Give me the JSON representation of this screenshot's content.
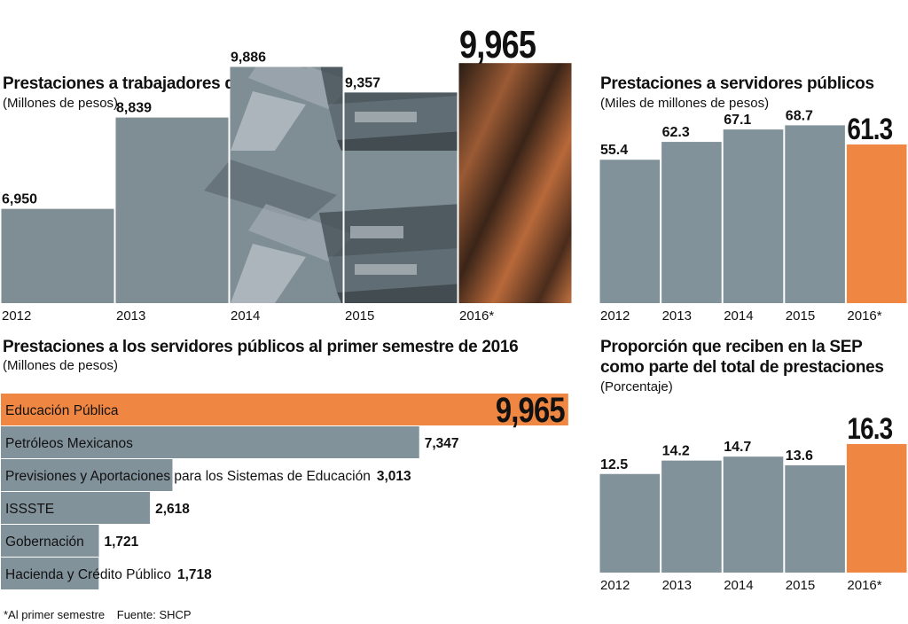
{
  "colors": {
    "gray": "#82929b",
    "orange": "#ef8642",
    "text": "#111111",
    "photo_dark": "#3a3a3a"
  },
  "chart_data": [
    {
      "type": "bar",
      "title": "Prestaciones a trabajadores de la SEP",
      "subtitle": "(Millones de pesos)",
      "categories": [
        "2012",
        "2013",
        "2014",
        "2015",
        "2016*"
      ],
      "values": [
        6950,
        8839,
        9886,
        9357,
        9965
      ],
      "value_labels": [
        "6,950",
        "8,839",
        "9,886",
        "9,357",
        "9,965"
      ],
      "highlight_index": 4,
      "ylim": [
        5000,
        10500
      ],
      "background": "photo-of-folders"
    },
    {
      "type": "bar",
      "title": "Prestaciones a servidores públicos",
      "subtitle": "(Miles de millones de pesos)",
      "categories": [
        "2012",
        "2013",
        "2014",
        "2015",
        "2016*"
      ],
      "values": [
        55.4,
        62.3,
        67.1,
        68.7,
        61.3
      ],
      "value_labels": [
        "55.4",
        "62.3",
        "67.1",
        "68.7",
        "61.3"
      ],
      "highlight_index": 4,
      "ylim": [
        0,
        75
      ]
    },
    {
      "type": "bar",
      "orientation": "horizontal",
      "title": "Prestaciones a los servidores públicos al primer semestre de 2016",
      "subtitle": "(Millones de pesos)",
      "categories": [
        "Educación Pública",
        "Petróleos Mexicanos",
        "Previsiones y Aportaciones para los Sistemas de Educación",
        "ISSSTE",
        "Gobernación",
        "Hacienda y Crédito Público"
      ],
      "values": [
        9965,
        7347,
        3013,
        2618,
        1721,
        1718
      ],
      "value_labels": [
        "9,965",
        "7,347",
        "3,013",
        "2,618",
        "1,721",
        "1,718"
      ],
      "highlight_index": 0,
      "xlim": [
        0,
        10030
      ]
    },
    {
      "type": "bar",
      "title_lines": [
        "Proporción que reciben en la SEP",
        "como parte del total de prestaciones"
      ],
      "subtitle": "(Porcentaje)",
      "categories": [
        "2012",
        "2013",
        "2014",
        "2015",
        "2016*"
      ],
      "values": [
        12.5,
        14.2,
        14.7,
        13.6,
        16.3
      ],
      "value_labels": [
        "12.5",
        "14.2",
        "14.7",
        "13.6",
        "16.3"
      ],
      "highlight_index": 4,
      "ylim": [
        0,
        20
      ]
    }
  ],
  "footnote": {
    "note": "*Al primer semestre",
    "source": "Fuente: SHCP"
  }
}
